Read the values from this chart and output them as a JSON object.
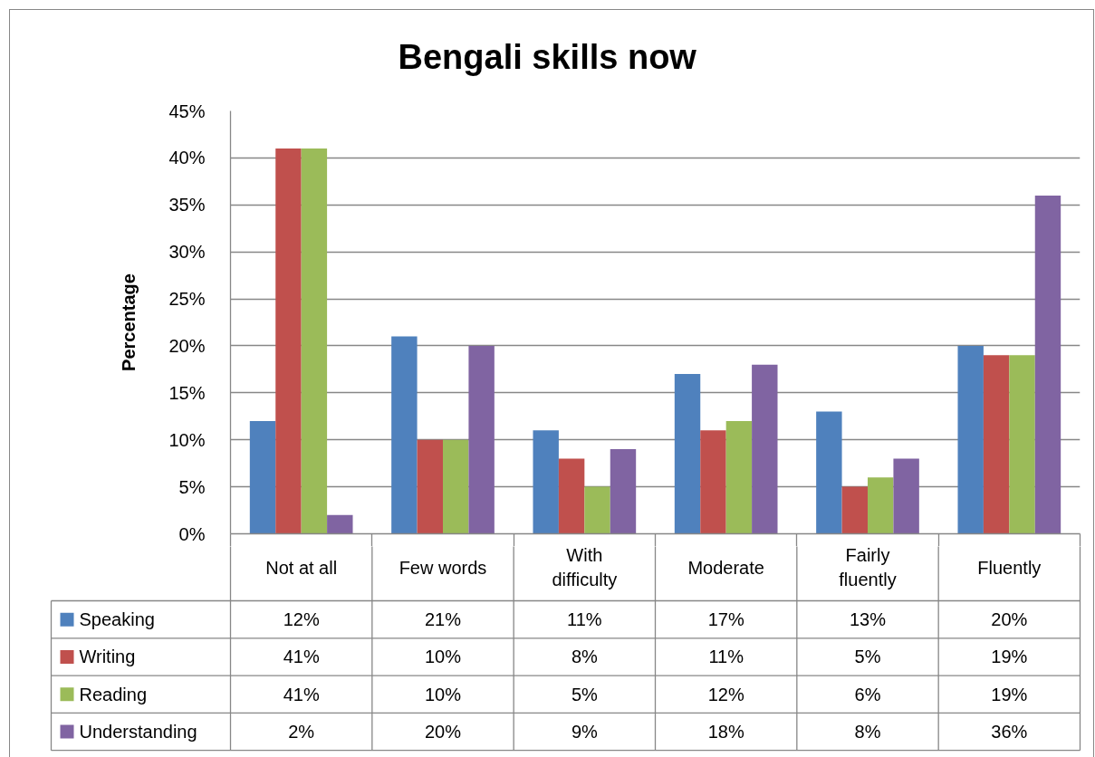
{
  "chart_data": {
    "type": "bar",
    "title": "Bengali skills  now",
    "ylabel": "Percentage",
    "categories": [
      "Not at all",
      "Few words",
      "With difficulty",
      "Moderate",
      "Fairly fluently",
      "Fluently"
    ],
    "series": [
      {
        "name": "Speaking",
        "color": "#4f81bd",
        "values": [
          12,
          21,
          11,
          17,
          13,
          20
        ],
        "value_labels": [
          "12%",
          "21%",
          "11%",
          "17%",
          "13%",
          "20%"
        ]
      },
      {
        "name": "Writing",
        "color": "#c0504d",
        "values": [
          41,
          10,
          8,
          11,
          5,
          19
        ],
        "value_labels": [
          "41%",
          "10%",
          "8%",
          "11%",
          "5%",
          "19%"
        ]
      },
      {
        "name": "Reading",
        "color": "#9bbb59",
        "values": [
          41,
          10,
          5,
          12,
          6,
          19
        ],
        "value_labels": [
          "41%",
          "10%",
          "5%",
          "12%",
          "6%",
          "19%"
        ]
      },
      {
        "name": "Understanding",
        "color": "#8064a2",
        "values": [
          2,
          20,
          9,
          18,
          8,
          36
        ],
        "value_labels": [
          "2%",
          "20%",
          "9%",
          "18%",
          "8%",
          "36%"
        ]
      }
    ],
    "ylim": [
      0,
      45
    ],
    "yticks": [
      {
        "value": 0,
        "label": "0%"
      },
      {
        "value": 5,
        "label": "5%"
      },
      {
        "value": 10,
        "label": "10%"
      },
      {
        "value": 15,
        "label": "15%"
      },
      {
        "value": 20,
        "label": "20%"
      },
      {
        "value": 25,
        "label": "25%"
      },
      {
        "value": 30,
        "label": "30%"
      },
      {
        "value": 35,
        "label": "35%"
      },
      {
        "value": 40,
        "label": "40%"
      },
      {
        "value": 45,
        "label": "45%"
      }
    ],
    "grid": "y",
    "legend": "bottom left"
  }
}
